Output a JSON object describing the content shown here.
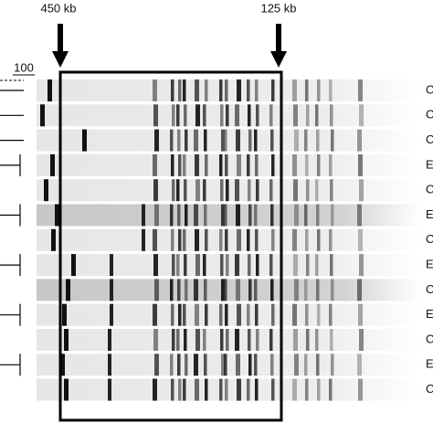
{
  "markers": [
    {
      "label": "450 kb"
    },
    {
      "label": "125 kb"
    }
  ],
  "scale": {
    "label": "100"
  },
  "lanes": [
    {
      "label": "C"
    },
    {
      "label": "C"
    },
    {
      "label": "C"
    },
    {
      "label": "E"
    },
    {
      "label": "C"
    },
    {
      "label": "E"
    },
    {
      "label": "C"
    },
    {
      "label": "E"
    },
    {
      "label": "C"
    },
    {
      "label": "E"
    },
    {
      "label": "C"
    },
    {
      "label": "E"
    },
    {
      "label": "C"
    }
  ]
}
